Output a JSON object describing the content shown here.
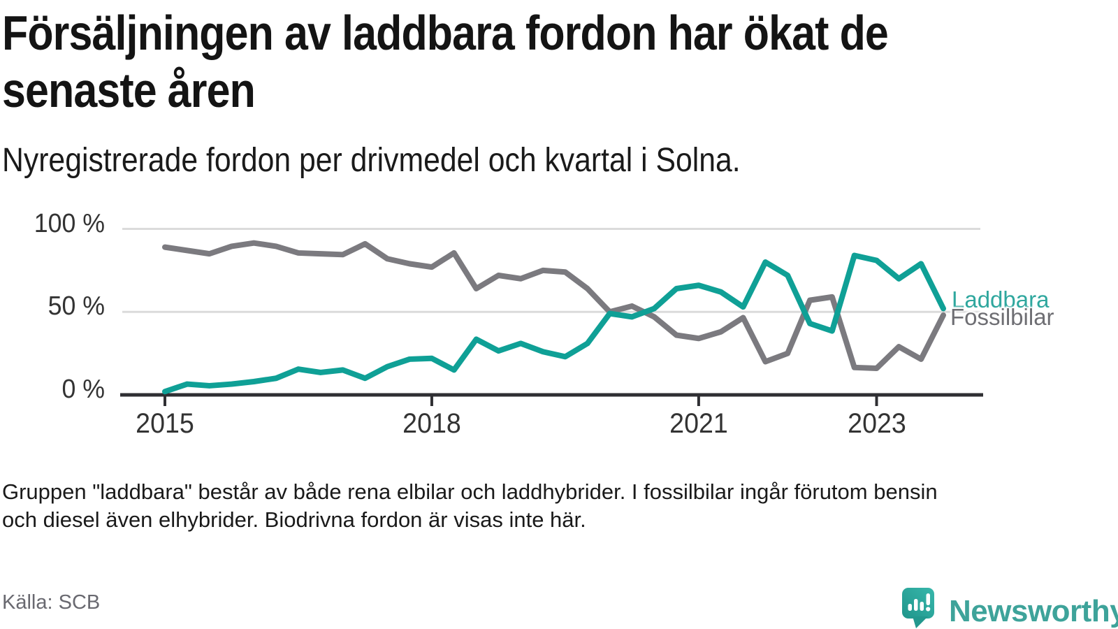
{
  "header": {
    "title_lines": [
      "Försäljningen av laddbara fordon har ökat de",
      "senaste åren"
    ],
    "subtitle": "Nyregistrerade fordon per drivmedel och kvartal i Solna."
  },
  "chart_data": {
    "type": "line",
    "title": "Nyregistrerade fordon per drivmedel och kvartal i Solna",
    "x_unit": "quarter",
    "grid": "horizontal",
    "ylim": [
      0,
      100
    ],
    "categories": [
      "2015 Q1",
      "2015 Q2",
      "2015 Q3",
      "2015 Q4",
      "2016 Q1",
      "2016 Q2",
      "2016 Q3",
      "2016 Q4",
      "2017 Q1",
      "2017 Q2",
      "2017 Q3",
      "2017 Q4",
      "2018 Q1",
      "2018 Q2",
      "2018 Q3",
      "2018 Q4",
      "2019 Q1",
      "2019 Q2",
      "2019 Q3",
      "2019 Q4",
      "2020 Q1",
      "2020 Q2",
      "2020 Q3",
      "2020 Q4",
      "2021 Q1",
      "2021 Q2",
      "2021 Q3",
      "2021 Q4",
      "2022 Q1",
      "2022 Q2",
      "2022 Q3",
      "2022 Q4",
      "2023 Q1",
      "2023 Q2",
      "2023 Q3",
      "2023 Q4"
    ],
    "series": [
      {
        "name": "Laddbara",
        "color": "#0FA096",
        "values": [
          2,
          6.5,
          5.5,
          6.5,
          8,
          10,
          15.5,
          13.5,
          15,
          10,
          17,
          21.5,
          22,
          15,
          33.5,
          26.5,
          31,
          26,
          23,
          31,
          49,
          47,
          52,
          64,
          66,
          62,
          53,
          80,
          72,
          43,
          38.5,
          84,
          81,
          70,
          79,
          52
        ]
      },
      {
        "name": "Fossilbilar",
        "color": "#7B7A7F",
        "values": [
          89,
          87,
          85,
          89.5,
          91.5,
          89.5,
          85.5,
          85,
          84.5,
          91,
          82,
          79,
          77,
          85.5,
          64,
          72,
          70,
          75,
          74,
          64,
          50,
          53.5,
          47,
          36,
          34,
          38,
          46.5,
          20,
          25,
          57,
          59,
          16.5,
          16,
          29,
          21.5,
          48
        ]
      }
    ],
    "yticks": [
      {
        "value": 0,
        "label": "0 %"
      },
      {
        "value": 50,
        "label": "50 %"
      },
      {
        "value": 100,
        "label": "100 %"
      }
    ],
    "xticks": [
      {
        "index": 0,
        "label": "2015"
      },
      {
        "index": 12,
        "label": "2018"
      },
      {
        "index": 24,
        "label": "2021"
      },
      {
        "index": 32,
        "label": "2023"
      }
    ],
    "legend_position": "right-of-line-ends",
    "axis_color": "#2F2F33",
    "grid_color": "#DBDBDB"
  },
  "footer": {
    "note_lines": [
      "Gruppen \"laddbara\" består av både rena elbilar och laddhybrider. I fossilbilar ingår förutom bensin",
      "och diesel även elhybrider. Biodrivna fordon är visas inte här."
    ],
    "source": "Källa: SCB"
  },
  "branding": {
    "logo_text": "Newsworthy",
    "logo_color": "#3EA39A",
    "logo_icon": "speech-bubble-bar-chart-icon"
  }
}
